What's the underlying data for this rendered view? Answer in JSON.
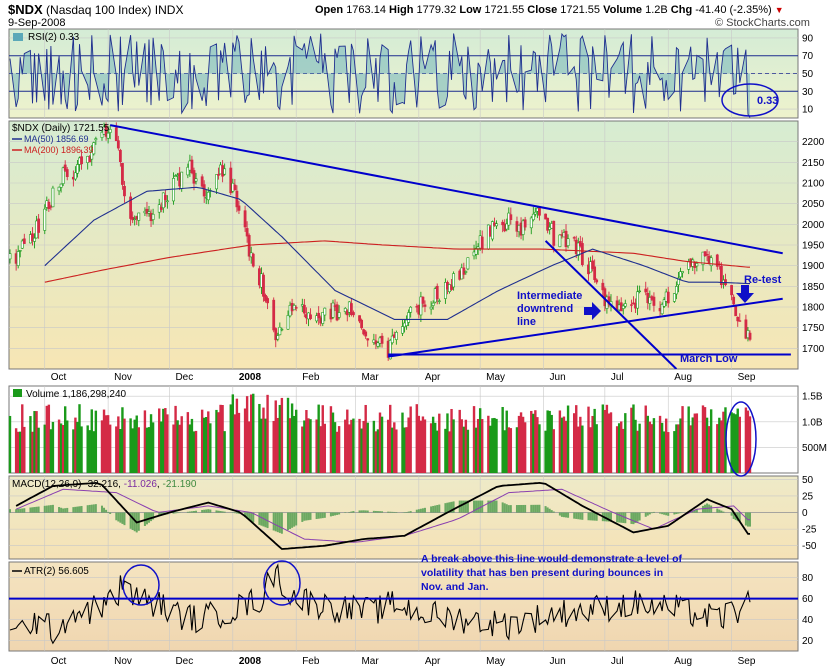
{
  "header": {
    "symbol": "$NDX",
    "name": "(Nasdaq 100 Index)",
    "exchange": "INDX",
    "date": "9-Sep-2008",
    "open_label": "Open",
    "open": "1763.14",
    "high_label": "High",
    "high": "1779.32",
    "low_label": "Low",
    "low": "1721.55",
    "close_label": "Close",
    "close": "1721.55",
    "volume_label": "Volume",
    "volume": "1.2B",
    "chg_label": "Chg",
    "chg": "-41.40 (-2.35%)",
    "copyright": "© StockCharts.com"
  },
  "colors": {
    "up": "#1a9a1a",
    "down": "#d42a46",
    "trend": "#0000cc",
    "ma50": "#1f2f8f",
    "ma200": "#cc2020",
    "rsi_fill": "#5aa8b8",
    "vol_bg": "#ffffff",
    "price_bg_top": "#d8ecd0",
    "price_bg_bottom": "#f6e7b8"
  },
  "chart_data": [
    {
      "type": "line",
      "panel": "rsi",
      "label": "RSI(2) 0.33",
      "ylim": [
        0,
        100
      ],
      "yticks": [
        10,
        30,
        50,
        70,
        90
      ],
      "reference_lines": [
        30,
        50,
        70
      ],
      "last_value": 0.33,
      "annotation": "0.33"
    },
    {
      "type": "candlestick",
      "panel": "price",
      "label": "$NDX (Daily) 1721.55",
      "ylim": [
        1650,
        2250
      ],
      "yticks": [
        1700,
        1750,
        1800,
        1850,
        1900,
        1950,
        2000,
        2050,
        2100,
        2150,
        2200
      ],
      "x_tick_labels": [
        "Oct",
        "Nov",
        "Dec",
        "2008",
        "Feb",
        "Mar",
        "Apr",
        "May",
        "Jun",
        "Jul",
        "Aug",
        "Sep"
      ],
      "x_tick_months": [
        "2007-10",
        "2007-11",
        "2007-12",
        "2008-01",
        "2008-02",
        "2008-03",
        "2008-04",
        "2008-05",
        "2008-06",
        "2008-07",
        "2008-08",
        "2008-09"
      ],
      "close_path": [
        [
          "2007-09-17",
          1920
        ],
        [
          "2007-09-28",
          2000
        ],
        [
          "2007-10-10",
          2115
        ],
        [
          "2007-10-22",
          2150
        ],
        [
          "2007-10-31",
          2230
        ],
        [
          "2007-11-05",
          2190
        ],
        [
          "2007-11-12",
          2010
        ],
        [
          "2007-11-21",
          2020
        ],
        [
          "2007-11-30",
          2075
        ],
        [
          "2007-12-10",
          2140
        ],
        [
          "2007-12-19",
          2070
        ],
        [
          "2007-12-26",
          2140
        ],
        [
          "2008-01-02",
          2080
        ],
        [
          "2008-01-09",
          1930
        ],
        [
          "2008-01-15",
          1860
        ],
        [
          "2008-01-22",
          1740
        ],
        [
          "2008-01-31",
          1800
        ],
        [
          "2008-02-08",
          1770
        ],
        [
          "2008-02-19",
          1790
        ],
        [
          "2008-02-28",
          1790
        ],
        [
          "2008-03-07",
          1720
        ],
        [
          "2008-03-17",
          1700
        ],
        [
          "2008-03-24",
          1760
        ],
        [
          "2008-04-01",
          1800
        ],
        [
          "2008-04-10",
          1830
        ],
        [
          "2008-04-18",
          1860
        ],
        [
          "2008-04-28",
          1930
        ],
        [
          "2008-05-06",
          1990
        ],
        [
          "2008-05-15",
          2010
        ],
        [
          "2008-05-20",
          1990
        ],
        [
          "2008-05-30",
          2040
        ],
        [
          "2008-06-06",
          1970
        ],
        [
          "2008-06-16",
          1950
        ],
        [
          "2008-06-25",
          1880
        ],
        [
          "2008-07-03",
          1800
        ],
        [
          "2008-07-11",
          1790
        ],
        [
          "2008-07-18",
          1830
        ],
        [
          "2008-07-28",
          1800
        ],
        [
          "2008-08-04",
          1850
        ],
        [
          "2008-08-11",
          1920
        ],
        [
          "2008-08-19",
          1910
        ],
        [
          "2008-08-26",
          1880
        ],
        [
          "2008-09-02",
          1800
        ],
        [
          "2008-09-05",
          1770
        ],
        [
          "2008-09-09",
          1721.55
        ]
      ],
      "series": [
        {
          "name": "MA(50) 1856.69",
          "last_value": 1856.69,
          "values": [
            [
              "2007-10-01",
              1900
            ],
            [
              "2007-10-25",
              2010
            ],
            [
              "2007-11-20",
              2080
            ],
            [
              "2007-12-15",
              2090
            ],
            [
              "2008-01-05",
              2060
            ],
            [
              "2008-01-25",
              1970
            ],
            [
              "2008-02-20",
              1840
            ],
            [
              "2008-03-20",
              1770
            ],
            [
              "2008-04-15",
              1770
            ],
            [
              "2008-05-10",
              1840
            ],
            [
              "2008-06-05",
              1900
            ],
            [
              "2008-06-25",
              1940
            ],
            [
              "2008-07-20",
              1900
            ],
            [
              "2008-08-10",
              1860
            ],
            [
              "2008-08-25",
              1860
            ],
            [
              "2008-09-09",
              1856.69
            ]
          ]
        },
        {
          "name": "MA(200) 1896.39",
          "last_value": 1896.39,
          "values": [
            [
              "2007-10-01",
              1860
            ],
            [
              "2007-10-30",
              1890
            ],
            [
              "2007-12-01",
              1920
            ],
            [
              "2008-01-10",
              1950
            ],
            [
              "2008-02-15",
              1960
            ],
            [
              "2008-03-15",
              1950
            ],
            [
              "2008-04-20",
              1940
            ],
            [
              "2008-06-01",
              1940
            ],
            [
              "2008-07-15",
              1930
            ],
            [
              "2008-08-10",
              1910
            ],
            [
              "2008-09-09",
              1896.39
            ]
          ]
        }
      ],
      "trendlines": [
        {
          "name": "upper-downtrend",
          "from": [
            "2007-11-02",
            2240
          ],
          "to": [
            "2008-09-26",
            1930
          ]
        },
        {
          "name": "intermediate-downtrend",
          "from": [
            "2008-06-02",
            1960
          ],
          "to": [
            "2008-08-05",
            1650
          ]
        },
        {
          "name": "rising-support",
          "from": [
            "2008-03-17",
            1680
          ],
          "to": [
            "2008-09-26",
            1820
          ]
        },
        {
          "name": "march-low",
          "from": [
            "2008-03-17",
            1685
          ],
          "to": [
            "2008-09-30",
            1685
          ]
        }
      ],
      "annotations": [
        "Intermediate",
        "downtrend",
        "line",
        "Re-test",
        "March Low"
      ]
    },
    {
      "type": "bar",
      "panel": "volume",
      "label": "Volume 1,186,298,240",
      "ylim": [
        0,
        1.7
      ],
      "yticks": [
        0.5,
        1.0,
        1.5
      ],
      "ytick_labels": [
        "500M",
        "1.0B",
        "1.5B"
      ],
      "last_value": 1186298240
    },
    {
      "type": "line",
      "panel": "macd",
      "label": "MACD(12,26,9)",
      "values_text": [
        "-32.216",
        "-11.026",
        "-21.190"
      ],
      "ylim": [
        -70,
        55
      ],
      "yticks": [
        -50,
        -25,
        0,
        25,
        50
      ],
      "macd_path": [
        [
          "2007-09-17",
          10
        ],
        [
          "2007-10-05",
          40
        ],
        [
          "2007-10-28",
          45
        ],
        [
          "2007-11-15",
          -15
        ],
        [
          "2007-12-01",
          0
        ],
        [
          "2007-12-20",
          15
        ],
        [
          "2008-01-05",
          0
        ],
        [
          "2008-01-25",
          -55
        ],
        [
          "2008-02-15",
          -50
        ],
        [
          "2008-03-05",
          -40
        ],
        [
          "2008-03-25",
          -35
        ],
        [
          "2008-04-15",
          0
        ],
        [
          "2008-05-10",
          40
        ],
        [
          "2008-06-01",
          45
        ],
        [
          "2008-06-20",
          10
        ],
        [
          "2008-07-15",
          -30
        ],
        [
          "2008-08-01",
          -20
        ],
        [
          "2008-08-20",
          20
        ],
        [
          "2008-09-01",
          5
        ],
        [
          "2008-09-09",
          -32.216
        ]
      ],
      "signal_path": [
        [
          "2007-09-17",
          5
        ],
        [
          "2007-10-10",
          35
        ],
        [
          "2007-11-05",
          30
        ],
        [
          "2007-11-25",
          0
        ],
        [
          "2007-12-20",
          10
        ],
        [
          "2008-01-10",
          0
        ],
        [
          "2008-02-05",
          -40
        ],
        [
          "2008-03-01",
          -45
        ],
        [
          "2008-03-25",
          -35
        ],
        [
          "2008-04-20",
          -10
        ],
        [
          "2008-05-15",
          30
        ],
        [
          "2008-06-10",
          35
        ],
        [
          "2008-07-05",
          0
        ],
        [
          "2008-07-25",
          -25
        ],
        [
          "2008-08-15",
          5
        ],
        [
          "2008-09-02",
          10
        ],
        [
          "2008-09-09",
          -11.026
        ]
      ]
    },
    {
      "type": "line",
      "panel": "atr",
      "label": "ATR(2) 56.605",
      "ylim": [
        10,
        95
      ],
      "yticks": [
        20,
        40,
        60,
        80
      ],
      "reference_line": 60,
      "last_value": 56.605,
      "atr_path": [
        [
          "2007-09-17",
          25
        ],
        [
          "2007-09-25",
          40
        ],
        [
          "2007-10-05",
          30
        ],
        [
          "2007-10-15",
          45
        ],
        [
          "2007-10-25",
          50
        ],
        [
          "2007-11-05",
          60
        ],
        [
          "2007-11-08",
          75
        ],
        [
          "2007-11-15",
          60
        ],
        [
          "2007-11-25",
          55
        ],
        [
          "2007-12-05",
          45
        ],
        [
          "2007-12-15",
          40
        ],
        [
          "2008-01-02",
          50
        ],
        [
          "2008-01-15",
          60
        ],
        [
          "2008-01-22",
          88
        ],
        [
          "2008-01-28",
          65
        ],
        [
          "2008-02-10",
          55
        ],
        [
          "2008-02-25",
          50
        ],
        [
          "2008-03-10",
          48
        ],
        [
          "2008-03-20",
          55
        ],
        [
          "2008-04-05",
          45
        ],
        [
          "2008-04-25",
          40
        ],
        [
          "2008-05-15",
          35
        ],
        [
          "2008-06-05",
          45
        ],
        [
          "2008-06-25",
          50
        ],
        [
          "2008-07-15",
          55
        ],
        [
          "2008-08-05",
          50
        ],
        [
          "2008-08-25",
          40
        ],
        [
          "2008-09-05",
          50
        ],
        [
          "2008-09-09",
          56.605
        ]
      ],
      "annotation": [
        "A break above this line would demonstrate a level of",
        "volatility that has ben present during bounces in",
        "Nov. and Jan."
      ]
    }
  ]
}
